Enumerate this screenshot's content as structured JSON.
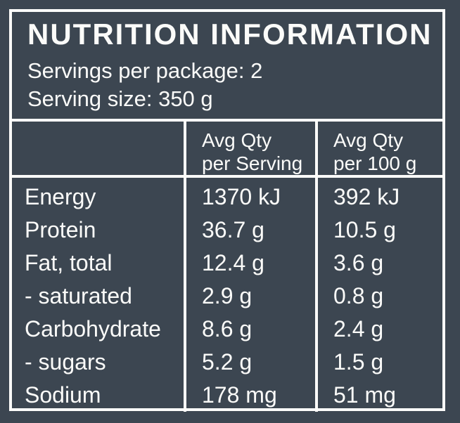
{
  "panel": {
    "title": "NUTRITION INFORMATION",
    "servings_line": "Servings per package: 2",
    "serving_size_line": "Serving size: 350 g"
  },
  "table": {
    "headers": {
      "nutrient": "",
      "per_serving": {
        "line1": "Avg Qty",
        "line2": "per Serving"
      },
      "per_100g": {
        "line1": "Avg Qty",
        "line2": "per 100 g"
      }
    },
    "rows": [
      {
        "nutrient": "Energy",
        "per_serving": "1370 kJ",
        "per_100g": "392 kJ"
      },
      {
        "nutrient": "Protein",
        "per_serving": "36.7 g",
        "per_100g": "10.5 g"
      },
      {
        "nutrient": "Fat, total",
        "per_serving": "12.4 g",
        "per_100g": "3.6 g"
      },
      {
        "nutrient": "- saturated",
        "per_serving": "2.9 g",
        "per_100g": "0.8 g"
      },
      {
        "nutrient": "Carbohydrate",
        "per_serving": "8.6 g",
        "per_100g": "2.4 g"
      },
      {
        "nutrient": "- sugars",
        "per_serving": "5.2 g",
        "per_100g": "1.5 g"
      },
      {
        "nutrient": "Sodium",
        "per_serving": "178 mg",
        "per_100g": "51 mg"
      }
    ]
  },
  "colors": {
    "background": "#3C4651",
    "border": "#FCFCFA",
    "text": "#FBFBF9"
  }
}
